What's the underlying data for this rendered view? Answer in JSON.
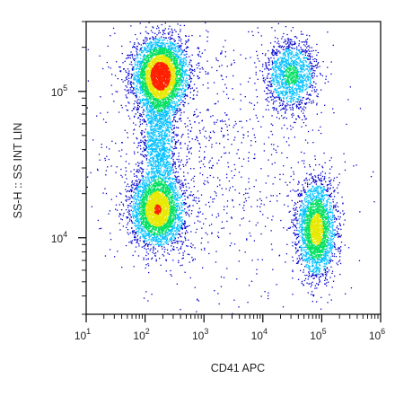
{
  "chart_data": {
    "type": "scatter",
    "title": "",
    "xlabel": "CD41 APC",
    "ylabel": "SS-H :: SS INT LIN",
    "x_scale": "log",
    "y_scale": "log",
    "xlim": [
      10,
      1000000
    ],
    "ylim": [
      3000,
      300000
    ],
    "x_ticks": [
      {
        "base": "10",
        "exp": "1",
        "value": 10
      },
      {
        "base": "10",
        "exp": "2",
        "value": 100
      },
      {
        "base": "10",
        "exp": "3",
        "value": 1000
      },
      {
        "base": "10",
        "exp": "4",
        "value": 10000
      },
      {
        "base": "10",
        "exp": "5",
        "value": 100000
      },
      {
        "base": "10",
        "exp": "6",
        "value": 1000000
      }
    ],
    "y_ticks": [
      {
        "base": "10",
        "exp": "4",
        "value": 10000
      },
      {
        "base": "10",
        "exp": "5",
        "value": 100000
      }
    ],
    "grid": false,
    "color_scale": [
      "#0000cc",
      "#00c0ff",
      "#00e060",
      "#e8e800",
      "#ff2000"
    ],
    "populations": [
      {
        "x": 180,
        "y": 130000,
        "spread_x": 0.22,
        "spread_y": 0.12,
        "weight": 0.3
      },
      {
        "x": 160,
        "y": 15500,
        "spread_x": 0.22,
        "spread_y": 0.12,
        "weight": 0.23
      },
      {
        "x": 30000,
        "y": 130000,
        "spread_x": 0.22,
        "spread_y": 0.12,
        "weight": 0.1
      },
      {
        "x": 80000,
        "y": 11500,
        "spread_x": 0.16,
        "spread_y": 0.16,
        "weight": 0.19
      },
      {
        "x": 170,
        "y": 45000,
        "spread_x": 0.15,
        "spread_y": 0.22,
        "weight": 0.1
      },
      {
        "x": 1000,
        "y": 40000,
        "spread_x": 1.1,
        "spread_y": 0.5,
        "weight": 0.08
      }
    ]
  }
}
